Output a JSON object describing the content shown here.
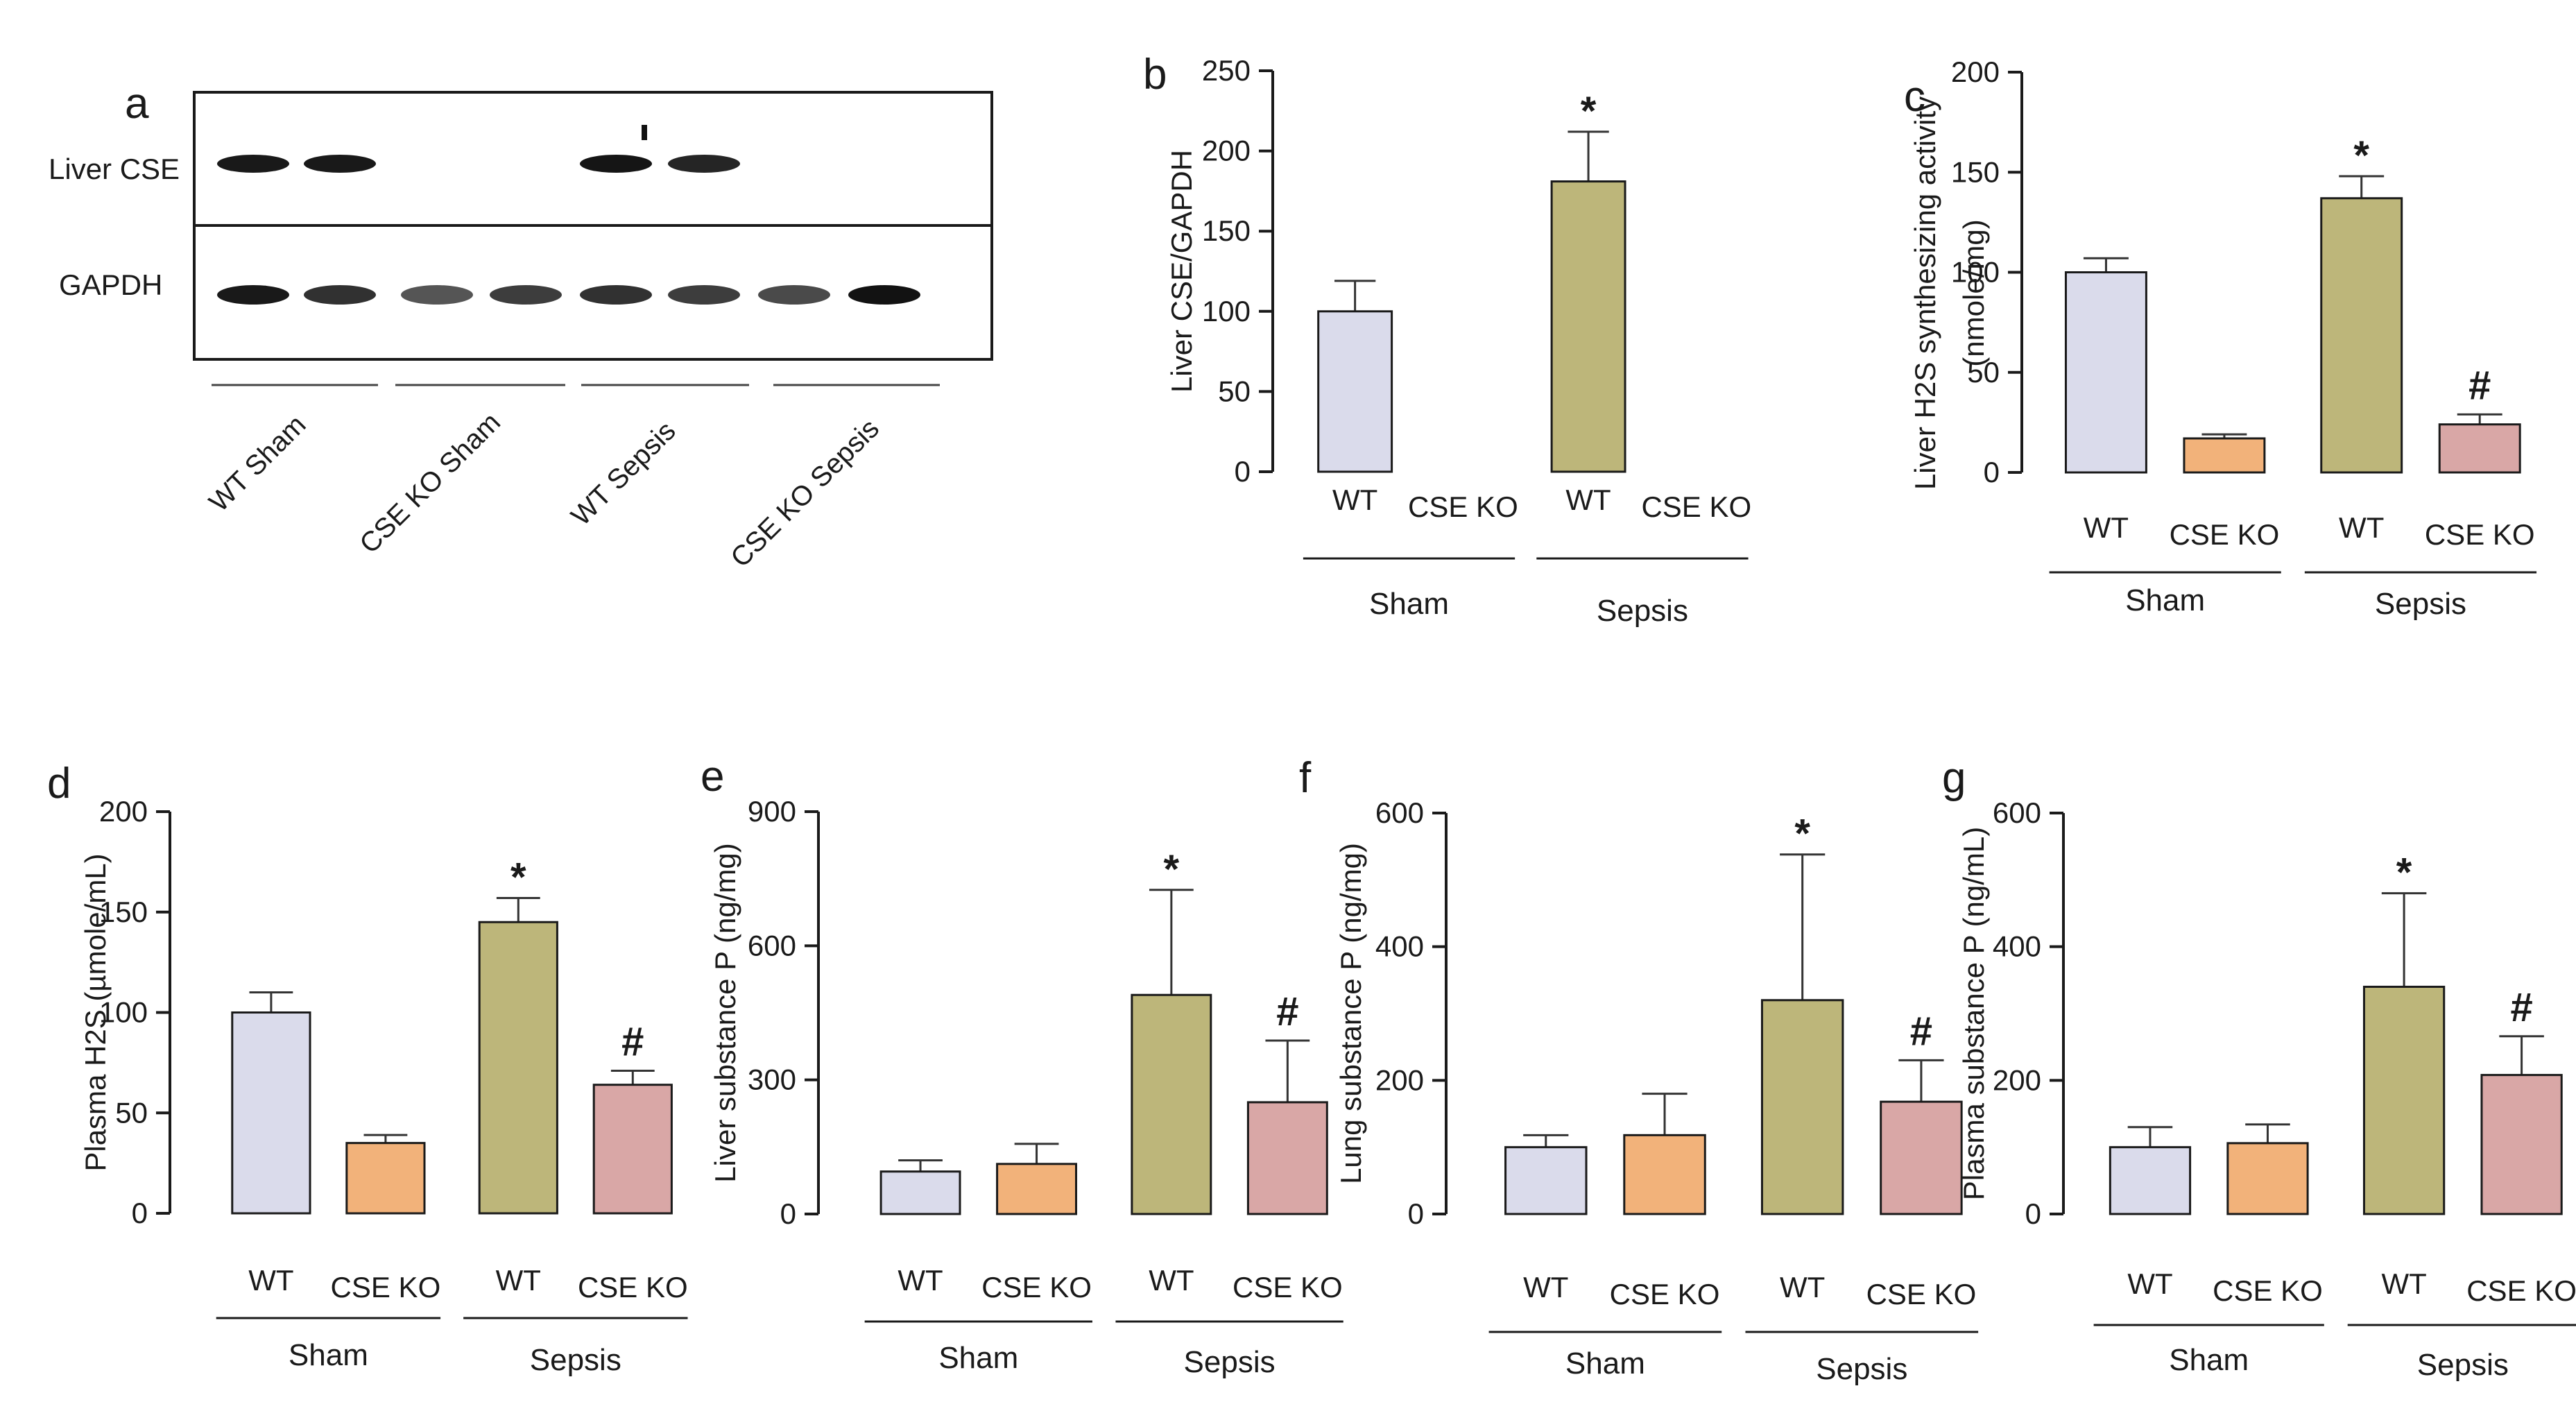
{
  "figure": {
    "colors": {
      "wt_sham": "#dadbeb",
      "ko_sham": "#f2b27a",
      "wt_sepsis": "#bdb67a",
      "ko_sepsis": "#d9a7a6",
      "axis": "#1a1a1a",
      "blot_band": "#0d0d0d"
    }
  },
  "blot": {
    "letter": "a",
    "row_labels": [
      "Liver CSE",
      "GAPDH"
    ],
    "lanes": [
      "WT Sham",
      "CSE KO Sham",
      "WT Sepsis",
      "CSE KO Sepsis"
    ],
    "cse_band_intensity": [
      0.95,
      0.95,
      0,
      0,
      0.97,
      0.9,
      0,
      0
    ],
    "gapdh_band_intensity": [
      0.95,
      0.85,
      0.7,
      0.8,
      0.85,
      0.8,
      0.75,
      0.98
    ]
  },
  "chart_data": [
    {
      "letter": "b",
      "type": "bar",
      "ylabel": "Liver CSE/GAPDH",
      "ylim": [
        0,
        250
      ],
      "yticks": [
        "0",
        "50",
        "100",
        "150",
        "200",
        "250"
      ],
      "categories": [
        "WT",
        "CSE KO",
        "WT",
        "CSE KO"
      ],
      "groups": [
        "Sham",
        "Sepsis"
      ],
      "values": [
        100,
        0,
        181,
        0
      ],
      "errors": [
        19,
        0,
        31,
        0
      ],
      "annotations": [
        "",
        "",
        "*",
        ""
      ]
    },
    {
      "letter": "c",
      "type": "bar",
      "ylabel": [
        "Liver H2S synthesizing activity",
        "(nmole/mg)"
      ],
      "ylim": [
        0,
        200
      ],
      "yticks": [
        "0",
        "50",
        "100",
        "150",
        "200"
      ],
      "categories": [
        "WT",
        "CSE KO",
        "WT",
        "CSE KO"
      ],
      "groups": [
        "Sham",
        "Sepsis"
      ],
      "values": [
        100,
        17,
        137,
        24
      ],
      "errors": [
        7,
        2,
        11,
        5
      ],
      "annotations": [
        "",
        "",
        "*",
        "#"
      ]
    },
    {
      "letter": "d",
      "type": "bar",
      "ylabel": "Plasma H2S (µmole/mL)",
      "ylim": [
        0,
        200
      ],
      "yticks": [
        "0",
        "50",
        "100",
        "150",
        "200"
      ],
      "categories": [
        "WT",
        "CSE KO",
        "WT",
        "CSE KO"
      ],
      "groups": [
        "Sham",
        "Sepsis"
      ],
      "values": [
        100,
        35,
        145,
        64
      ],
      "errors": [
        10,
        4,
        12,
        7
      ],
      "annotations": [
        "",
        "",
        "*",
        "#"
      ]
    },
    {
      "letter": "e",
      "type": "bar",
      "ylabel": "Liver substance P (ng/mg)",
      "ylim": [
        0,
        900
      ],
      "yticks": [
        "0",
        "300",
        "600",
        "900"
      ],
      "categories": [
        "WT",
        "CSE KO",
        "WT",
        "CSE KO"
      ],
      "groups": [
        "Sham",
        "Sepsis"
      ],
      "values": [
        95,
        112,
        490,
        250
      ],
      "errors": [
        25,
        45,
        235,
        138
      ],
      "annotations": [
        "",
        "",
        "*",
        "#"
      ]
    },
    {
      "letter": "f",
      "type": "bar",
      "ylabel": "Lung substance P (ng/mg)",
      "ylim": [
        0,
        600
      ],
      "yticks": [
        "0",
        "200",
        "400",
        "600"
      ],
      "categories": [
        "WT",
        "CSE KO",
        "WT",
        "CSE KO"
      ],
      "groups": [
        "Sham",
        "Sepsis"
      ],
      "values": [
        100,
        118,
        320,
        168
      ],
      "errors": [
        18,
        62,
        218,
        62
      ],
      "annotations": [
        "",
        "",
        "*",
        "#"
      ]
    },
    {
      "letter": "g",
      "type": "bar",
      "ylabel": "Plasma substance P (ng/mL)",
      "ylim": [
        0,
        600
      ],
      "yticks": [
        "0",
        "200",
        "400",
        "600"
      ],
      "categories": [
        "WT",
        "CSE KO",
        "WT",
        "CSE KO"
      ],
      "groups": [
        "Sham",
        "Sepsis"
      ],
      "values": [
        100,
        106,
        340,
        208
      ],
      "errors": [
        30,
        28,
        140,
        58
      ],
      "annotations": [
        "",
        "",
        "*",
        "#"
      ]
    }
  ]
}
